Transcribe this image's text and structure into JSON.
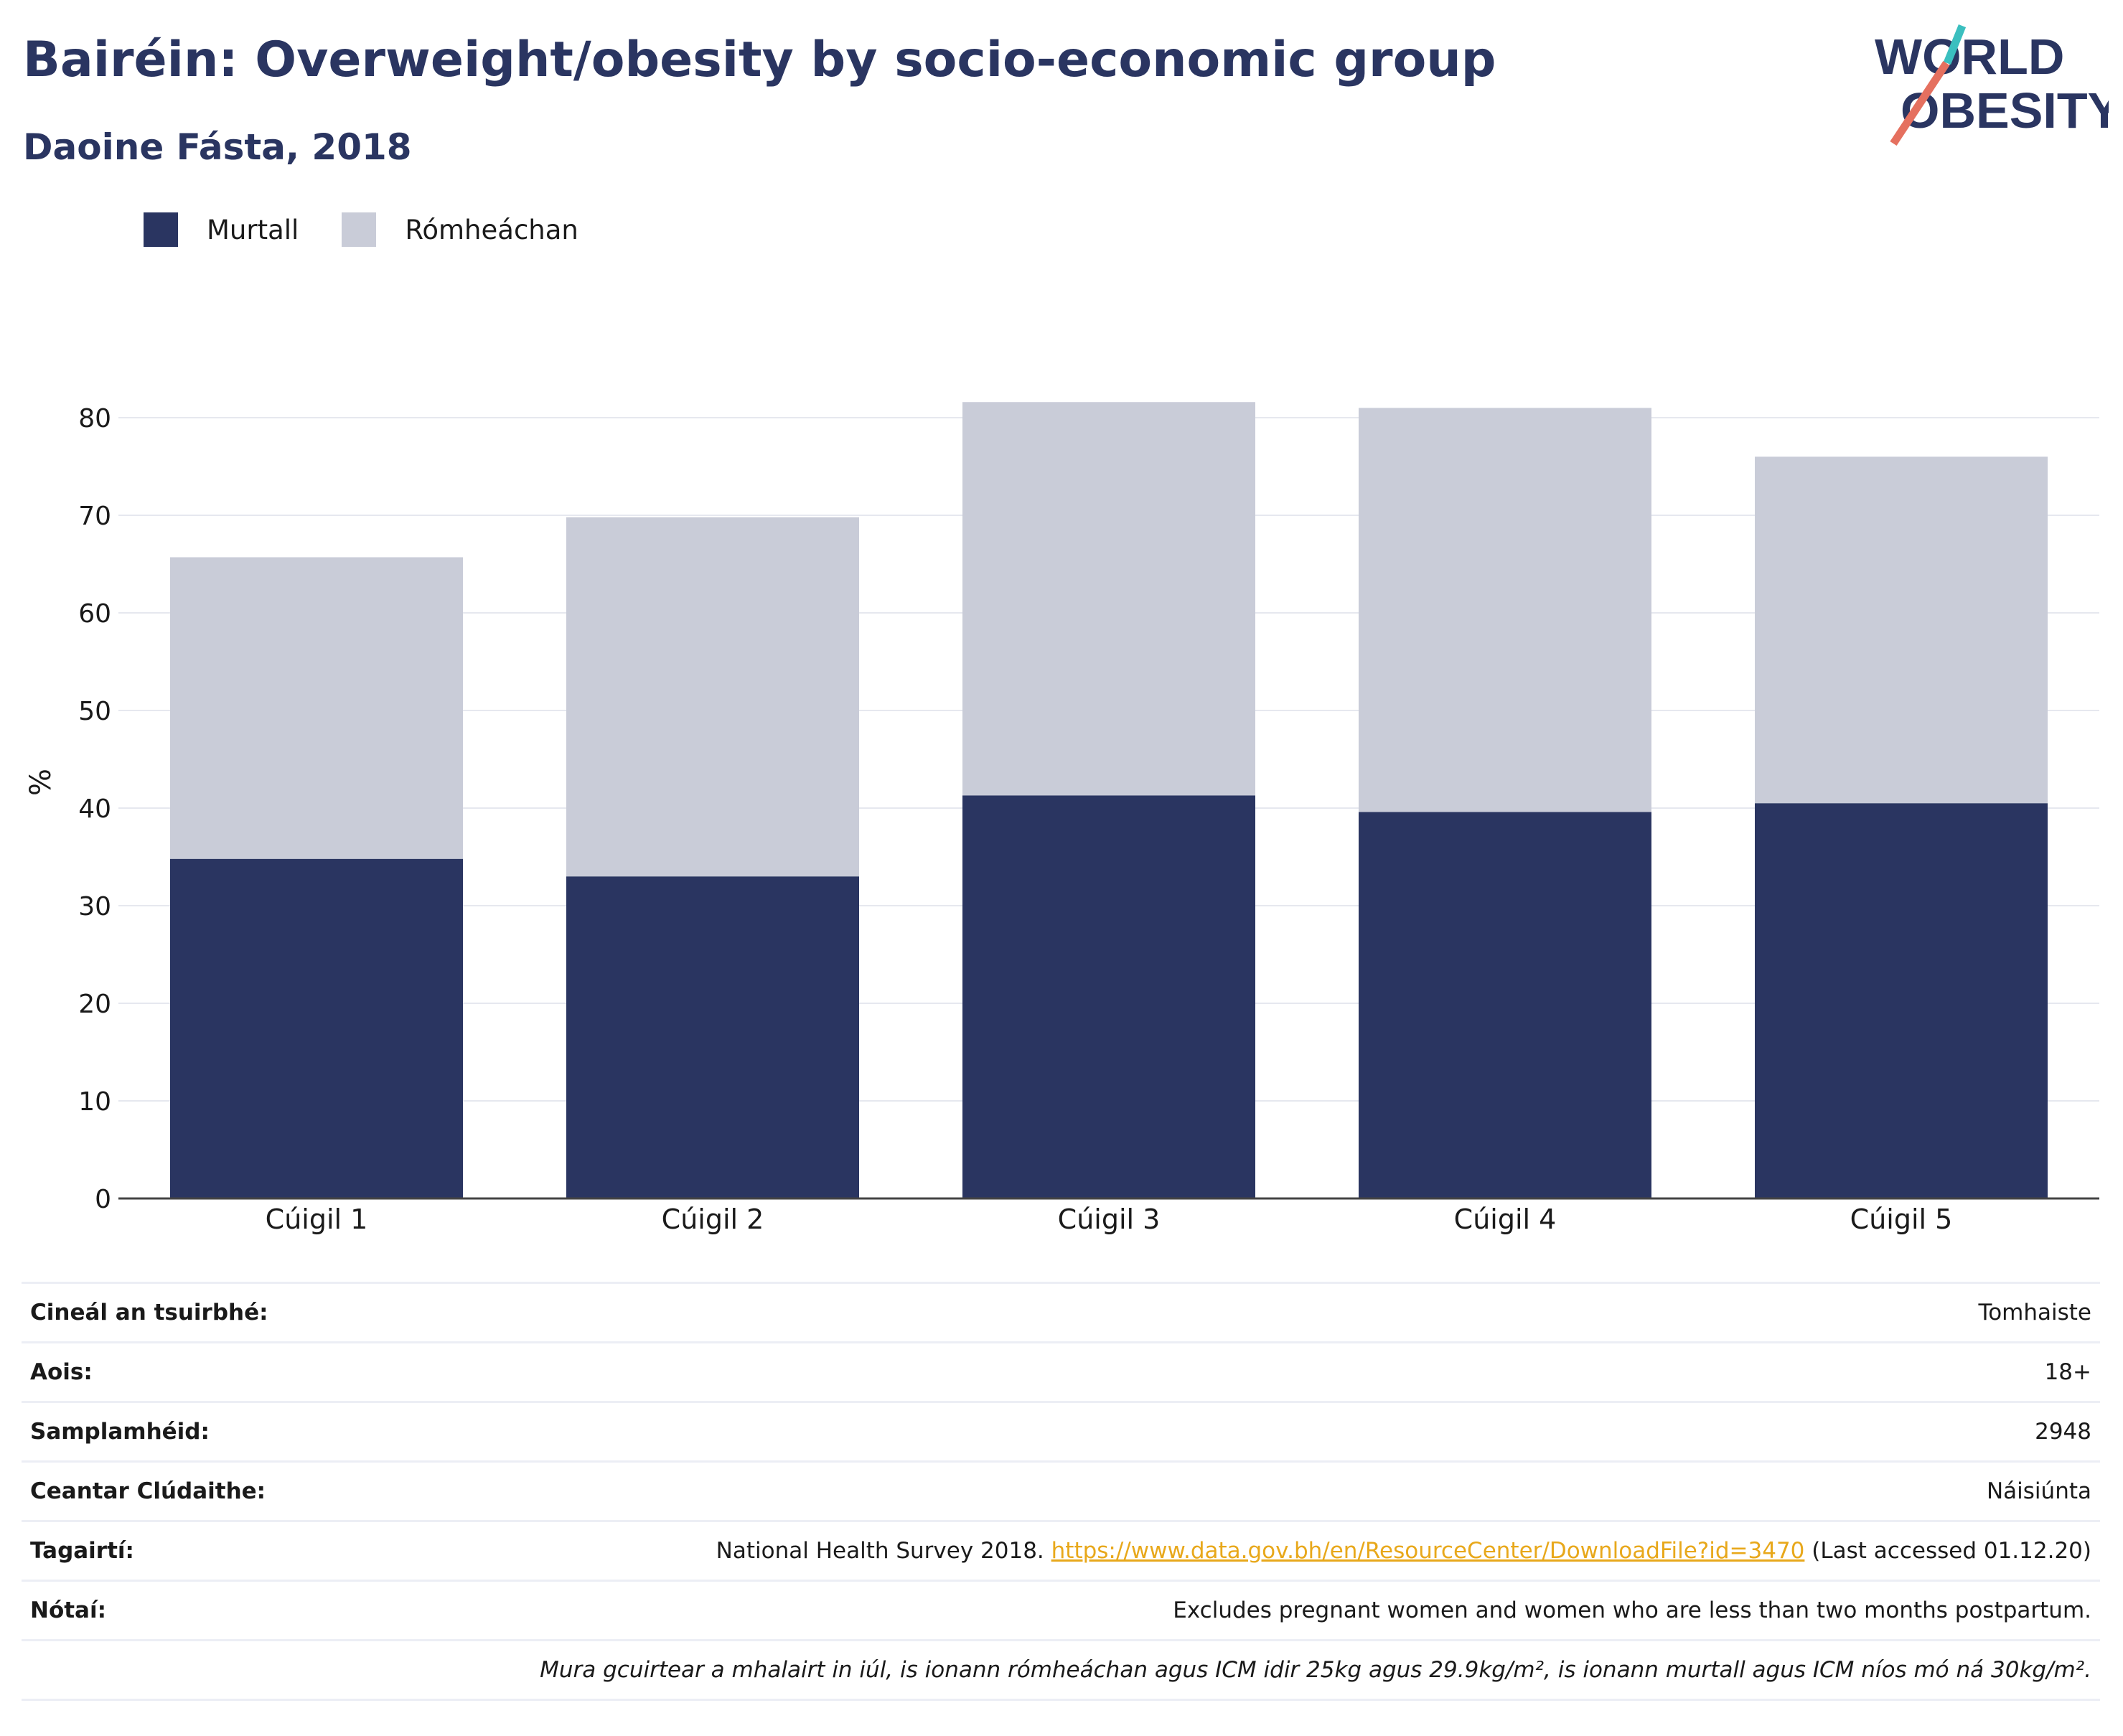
{
  "title": "Bairéin: Overweight/obesity by socio-economic group",
  "subtitle": "Daoine Fásta, 2018",
  "logo": {
    "line1": "WORLD",
    "line2": "OBESITY"
  },
  "colors": {
    "obesity": "#2a3561",
    "overweight": "#c9ccd8",
    "accent_teal": "#3bbfbf",
    "accent_coral": "#e5705f",
    "link": "#e8a81b"
  },
  "chart_data": {
    "type": "bar",
    "stacked": true,
    "categories": [
      "Cúigil 1",
      "Cúigil 2",
      "Cúigil 3",
      "Cúigil 4",
      "Cúigil 5"
    ],
    "series": [
      {
        "name": "Murtall",
        "values": [
          34.8,
          33.0,
          41.3,
          39.6,
          40.5
        ]
      },
      {
        "name": "Rómheáchan",
        "values": [
          30.9,
          36.8,
          40.3,
          41.4,
          35.5
        ]
      }
    ],
    "ylabel": "%",
    "ylim": [
      0,
      80
    ],
    "yticks": [
      0,
      10,
      20,
      30,
      40,
      50,
      60,
      70,
      80
    ],
    "grid": true,
    "legend_position": "top-left"
  },
  "info": {
    "rows": [
      {
        "label": "Cineál an tsuirbhé:",
        "value": "Tomhaiste"
      },
      {
        "label": "Aois:",
        "value": "18+"
      },
      {
        "label": "Samplamhéid:",
        "value": "2948"
      },
      {
        "label": "Ceantar Clúdaithe:",
        "value": "Náisiúnta"
      }
    ],
    "references": {
      "label": "Tagairtí:",
      "prefix": "National Health Survey 2018. ",
      "link": "https://www.data.gov.bh/en/ResourceCenter/DownloadFile?id=3470",
      "suffix": " (Last accessed 01.12.20)"
    },
    "notes": {
      "label": "Nótaí:",
      "value": "Excludes pregnant women and women who are less than two months postpartum."
    },
    "footnote": "Mura gcuirtear a mhalairt in iúl, is ionann rómheáchan agus ICM idir 25kg agus 29.9kg/m², is ionann murtall agus ICM níos mó ná 30kg/m²."
  }
}
